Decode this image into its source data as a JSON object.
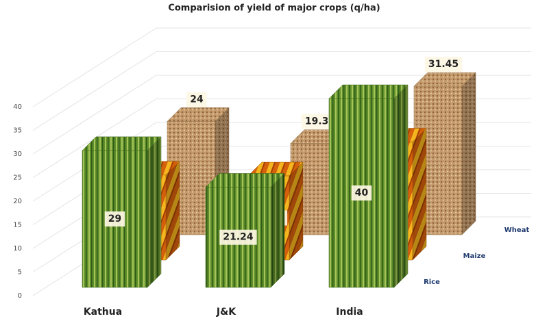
{
  "chart_data": {
    "type": "bar3d",
    "title": "Comparision of yield of major crops (q/ha)",
    "categories": [
      "Kathua",
      "J&K",
      "India"
    ],
    "series": [
      {
        "name": "Rice",
        "color": "#5f8f2a",
        "values": [
          29,
          21.24,
          40
        ]
      },
      {
        "name": "Maize",
        "color": "#e07a10",
        "values": [
          18,
          17.82,
          25
        ]
      },
      {
        "name": "Wheat",
        "color": "#c49a6c",
        "values": [
          24,
          19.33,
          31.45
        ]
      }
    ],
    "ylim": [
      0,
      40
    ],
    "yticks": [
      0,
      5,
      10,
      15,
      20,
      25,
      30,
      35,
      40
    ],
    "grid": true
  }
}
